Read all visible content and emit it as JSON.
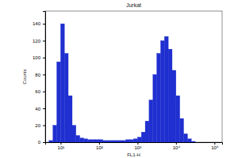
{
  "chart_data": {
    "type": "histogram",
    "title": "Jurkat",
    "xlabel": "FL1-H",
    "ylabel": "Counts",
    "log": "x",
    "color": "#1f2fd0",
    "grid": false,
    "bins": [
      3.98,
      5.01,
      6.31,
      7.94,
      10,
      12.6,
      15.8,
      20,
      25.1,
      31.6,
      39.8,
      50.1,
      63.1,
      79.4,
      100,
      126,
      158,
      200,
      251,
      316,
      398,
      501,
      631,
      794,
      1000,
      1259,
      1585,
      1995,
      2512,
      3162,
      3981,
      5012,
      6310,
      7943,
      10000,
      12589,
      15849,
      19953,
      25119,
      31623,
      39811,
      50119,
      63096,
      79433,
      100000,
      125893,
      158489
    ],
    "counts": [
      0,
      2,
      20,
      95,
      140,
      105,
      55,
      20,
      8,
      5,
      4,
      3,
      3,
      3,
      3,
      2,
      2,
      2,
      2,
      2,
      2,
      3,
      3,
      4,
      6,
      12,
      25,
      50,
      80,
      105,
      120,
      125,
      110,
      85,
      55,
      28,
      10,
      4,
      1,
      0,
      0,
      0,
      0,
      0,
      0,
      0
    ],
    "xlim": [
      3.98,
      158489
    ],
    "xticks": [
      {
        "value": 10,
        "label": "10¹"
      },
      {
        "value": 100,
        "label": "10²"
      },
      {
        "value": 1000,
        "label": "10³"
      },
      {
        "value": 10000,
        "label": "10⁴"
      },
      {
        "value": 100000,
        "label": "10⁵"
      }
    ],
    "ylim": [
      0,
      155
    ],
    "yticks": [
      0,
      20,
      40,
      60,
      80,
      100,
      120,
      140
    ]
  }
}
